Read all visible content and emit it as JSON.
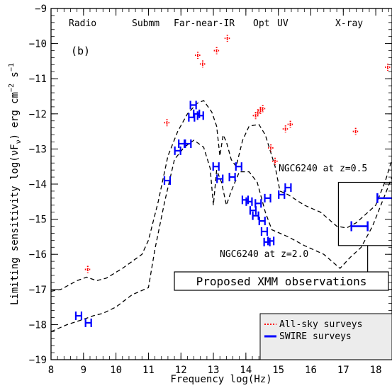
{
  "chart_data": {
    "type": "scatter",
    "panel_label": "(b)",
    "xlabel": "Frequency log(Hz)",
    "ylabel": "Limiting sensitivity log(νF",
    "ylabel_sub": "ν",
    "ylabel_unit": ") erg cm",
    "ylabel_exp1": "−2",
    "ylabel_s": " s",
    "ylabel_exp2": "−1",
    "xlim": [
      8,
      18.5
    ],
    "ylim": [
      -19,
      -9
    ],
    "x_ticks": [
      "8",
      "9",
      "10",
      "11",
      "12",
      "13",
      "14",
      "15",
      "16",
      "17",
      "18"
    ],
    "y_ticks": [
      "−9",
      "−10",
      "−11",
      "−12",
      "−13",
      "−14",
      "−15",
      "−16",
      "−17",
      "−18",
      "−19"
    ],
    "x_tick_values": [
      8,
      9,
      10,
      11,
      12,
      13,
      14,
      15,
      16,
      17,
      18
    ],
    "y_tick_values": [
      -9,
      -10,
      -11,
      -12,
      -13,
      -14,
      -15,
      -16,
      -17,
      -18,
      -19
    ],
    "bands": [
      "Radio",
      "Submm",
      "Far-near-IR",
      "Opt",
      "UV",
      "X-ray"
    ],
    "colors": {
      "all_sky": "#ff0000",
      "swire": "#0000ff",
      "legend_bg": "#ececec"
    },
    "legend": {
      "placement": "bottom-right",
      "entries": [
        "All-sky surveys",
        "SWIRE surveys"
      ]
    },
    "series": [
      {
        "name": "All-sky surveys",
        "style": "dotted-red",
        "points": [
          {
            "x": 9.13,
            "y": -16.43
          },
          {
            "x": 11.57,
            "y": -12.25
          },
          {
            "x": 12.52,
            "y": -10.33
          },
          {
            "x": 12.67,
            "y": -10.58
          },
          {
            "x": 13.1,
            "y": -10.2
          },
          {
            "x": 13.43,
            "y": -9.85
          },
          {
            "x": 14.3,
            "y": -12.05
          },
          {
            "x": 14.37,
            "y": -11.97
          },
          {
            "x": 14.45,
            "y": -11.9
          },
          {
            "x": 14.52,
            "y": -11.85
          },
          {
            "x": 14.77,
            "y": -12.97
          },
          {
            "x": 14.9,
            "y": -13.35
          },
          {
            "x": 15.22,
            "y": -12.43
          },
          {
            "x": 15.37,
            "y": -12.3
          },
          {
            "x": 17.38,
            "y": -12.5
          },
          {
            "x": 18.37,
            "y": -10.67
          }
        ]
      },
      {
        "name": "SWIRE surveys",
        "style": "solid-blue",
        "points": [
          {
            "x": 8.85,
            "y": -17.75
          },
          {
            "x": 9.15,
            "y": -17.95
          },
          {
            "x": 11.58,
            "y": -13.9
          },
          {
            "x": 11.9,
            "y": -13.05
          },
          {
            "x": 12.02,
            "y": -12.85
          },
          {
            "x": 12.22,
            "y": -12.85
          },
          {
            "x": 12.33,
            "y": -12.1
          },
          {
            "x": 12.38,
            "y": -11.75
          },
          {
            "x": 12.48,
            "y": -12.0
          },
          {
            "x": 12.6,
            "y": -12.05
          },
          {
            "x": 13.08,
            "y": -13.5
          },
          {
            "x": 13.2,
            "y": -13.85
          },
          {
            "x": 13.58,
            "y": -13.8
          },
          {
            "x": 13.78,
            "y": -13.5
          },
          {
            "x": 13.98,
            "y": -14.45
          },
          {
            "x": 14.1,
            "y": -14.5
          },
          {
            "x": 14.22,
            "y": -14.75
          },
          {
            "x": 14.3,
            "y": -14.9
          },
          {
            "x": 14.38,
            "y": -14.55
          },
          {
            "x": 14.5,
            "y": -15.05
          },
          {
            "x": 14.57,
            "y": -15.35
          },
          {
            "x": 14.65,
            "y": -15.65
          },
          {
            "x": 14.77,
            "y": -15.62
          },
          {
            "x": 14.67,
            "y": -14.4
          },
          {
            "x": 15.1,
            "y": -14.3
          },
          {
            "x": 15.3,
            "y": -14.1
          }
        ]
      }
    ],
    "models": [
      {
        "label": "NGC6240 at z=0.5",
        "points": [
          [
            8,
            -17.05
          ],
          [
            8.3,
            -17.0
          ],
          [
            8.8,
            -16.75
          ],
          [
            9.1,
            -16.65
          ],
          [
            9.4,
            -16.75
          ],
          [
            9.7,
            -16.68
          ],
          [
            10.2,
            -16.4
          ],
          [
            10.8,
            -16.0
          ],
          [
            11.0,
            -15.6
          ],
          [
            11.3,
            -14.5
          ],
          [
            11.6,
            -13.2
          ],
          [
            11.9,
            -12.5
          ],
          [
            12.2,
            -12.0
          ],
          [
            12.5,
            -11.7
          ],
          [
            12.7,
            -11.62
          ],
          [
            12.95,
            -11.95
          ],
          [
            13.1,
            -12.35
          ],
          [
            13.2,
            -13.2
          ],
          [
            13.3,
            -12.6
          ],
          [
            13.4,
            -12.8
          ],
          [
            13.55,
            -13.3
          ],
          [
            13.7,
            -13.5
          ],
          [
            13.9,
            -12.75
          ],
          [
            14.1,
            -12.35
          ],
          [
            14.4,
            -12.3
          ],
          [
            14.6,
            -12.6
          ],
          [
            14.9,
            -13.5
          ],
          [
            15.05,
            -14.2
          ],
          [
            15.3,
            -14.3
          ],
          [
            15.8,
            -14.6
          ],
          [
            16.3,
            -14.8
          ],
          [
            16.8,
            -15.2
          ],
          [
            17.1,
            -15.25
          ],
          [
            17.4,
            -15.1
          ],
          [
            17.7,
            -14.85
          ],
          [
            18.0,
            -14.6
          ],
          [
            18.3,
            -13.9
          ],
          [
            18.5,
            -13.3
          ]
        ]
      },
      {
        "label": "NGC6240 at z=2.0",
        "points": [
          [
            8,
            -18.2
          ],
          [
            8.5,
            -18.0
          ],
          [
            9.0,
            -17.85
          ],
          [
            9.3,
            -17.75
          ],
          [
            9.6,
            -17.68
          ],
          [
            10.0,
            -17.5
          ],
          [
            10.5,
            -17.15
          ],
          [
            11.0,
            -16.95
          ],
          [
            11.2,
            -15.85
          ],
          [
            11.5,
            -14.5
          ],
          [
            11.8,
            -13.3
          ],
          [
            12.1,
            -12.95
          ],
          [
            12.4,
            -12.75
          ],
          [
            12.7,
            -12.95
          ],
          [
            12.9,
            -13.55
          ],
          [
            13.0,
            -14.6
          ],
          [
            13.1,
            -13.6
          ],
          [
            13.25,
            -13.95
          ],
          [
            13.4,
            -14.6
          ],
          [
            13.55,
            -14.2
          ],
          [
            13.8,
            -13.65
          ],
          [
            14.1,
            -13.65
          ],
          [
            14.35,
            -13.95
          ],
          [
            14.6,
            -14.8
          ],
          [
            14.8,
            -15.3
          ],
          [
            15.3,
            -15.5
          ],
          [
            15.8,
            -15.75
          ],
          [
            16.4,
            -16.0
          ],
          [
            16.9,
            -16.4
          ],
          [
            17.2,
            -16.1
          ],
          [
            17.55,
            -15.8
          ],
          [
            17.9,
            -15.2
          ],
          [
            18.2,
            -14.5
          ],
          [
            18.5,
            -13.8
          ]
        ]
      }
    ],
    "xmm": {
      "label": "Proposed XMM observations",
      "bars": [
        {
          "x_from": 17.25,
          "x_to": 17.75,
          "y": -15.2
        },
        {
          "x_from": 18.05,
          "x_to": 18.55,
          "y": -14.4
        }
      ],
      "box": {
        "x_from": 16.85,
        "x_to": 18.9,
        "y_from": -15.75,
        "y_to": -13.95
      }
    },
    "annotations": [
      "NGC6240 at z=0.5",
      "NGC6240 at z=2.0"
    ]
  }
}
